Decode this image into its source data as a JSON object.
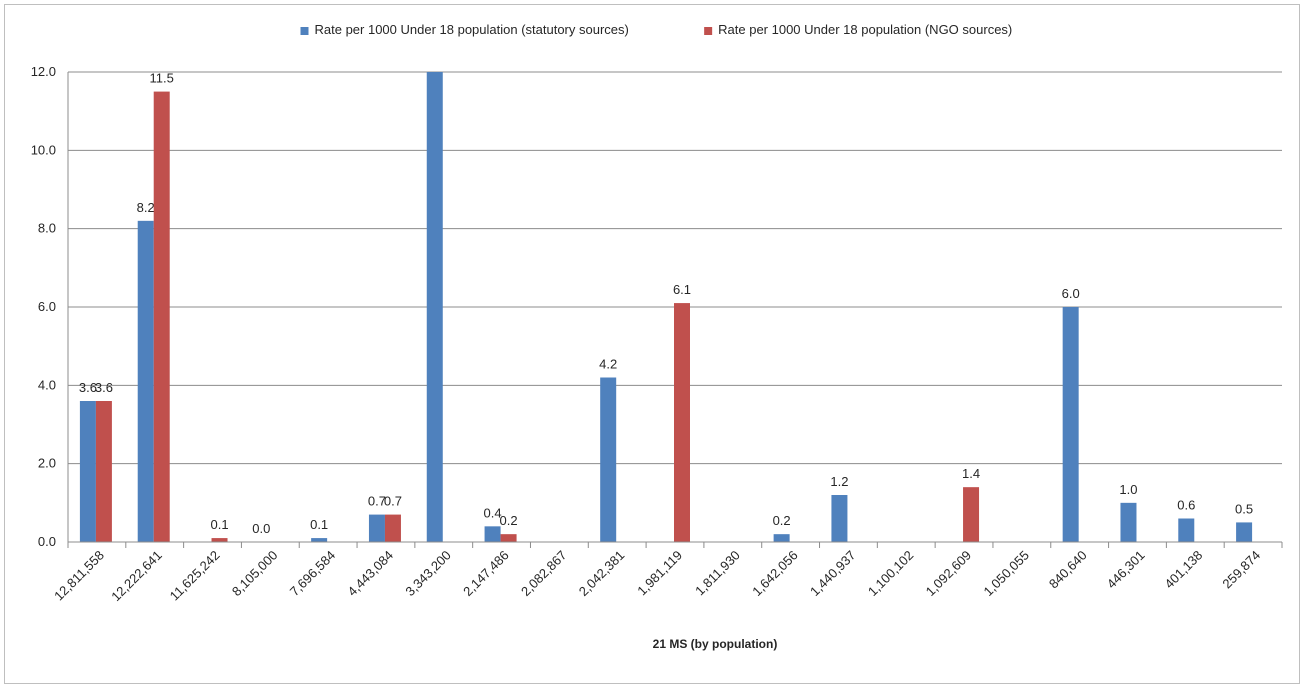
{
  "chart_data": {
    "type": "bar",
    "title": "",
    "xlabel": "21 MS (by population)",
    "ylabel": "",
    "ylim": [
      0,
      12
    ],
    "yticks": [
      "0.0",
      "2.0",
      "4.0",
      "6.0",
      "8.0",
      "10.0",
      "12.0"
    ],
    "grid": true,
    "legend_position": "top",
    "categories": [
      "12,811,558",
      "12,222,641",
      "11,625,242",
      "8,105,000",
      "7,696,584",
      "4,443,084",
      "3,343,200",
      "2,147,486",
      "2,082,867",
      "2,042,381",
      "1,981,119",
      "1,811,930",
      "1,642,056",
      "1,440,937",
      "1,100,102",
      "1,092,609",
      "1,050,055",
      "840,640",
      "446,301",
      "401,138",
      "259,874"
    ],
    "series": [
      {
        "name": "Rate per 1000 Under 18 population (statutory sources)",
        "color": "#4f81bd",
        "values": [
          3.6,
          8.2,
          null,
          0.0,
          0.1,
          0.7,
          12.0,
          0.4,
          null,
          4.2,
          null,
          null,
          0.2,
          1.2,
          null,
          null,
          null,
          6.0,
          1.0,
          0.6,
          0.5
        ],
        "labels": [
          "3.6",
          "8.2",
          "",
          "0.0",
          "0.1",
          "0.7",
          "",
          "0.4",
          "",
          "4.2",
          "",
          "",
          "0.2",
          "1.2",
          "",
          "",
          "",
          "6.0",
          "1.0",
          "0.6",
          "0.5"
        ]
      },
      {
        "name": "Rate per 1000 Under 18 population (NGO sources)",
        "color": "#c0504d",
        "values": [
          3.6,
          11.5,
          0.1,
          null,
          null,
          0.7,
          null,
          0.2,
          null,
          null,
          6.1,
          null,
          null,
          null,
          null,
          1.4,
          null,
          null,
          null,
          null,
          null
        ],
        "labels": [
          "3.6",
          "11.5",
          "0.1",
          "",
          "",
          "0.7",
          "",
          "0.2",
          "",
          "",
          "6.1",
          "",
          "",
          "",
          "",
          "1.4",
          "",
          "",
          "",
          "",
          ""
        ]
      }
    ]
  }
}
